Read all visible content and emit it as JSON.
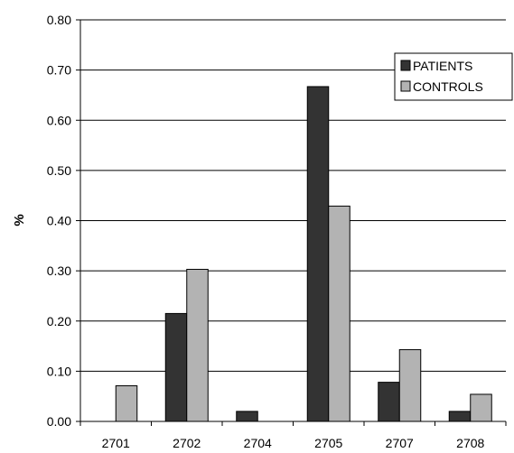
{
  "chart_data": {
    "type": "bar",
    "ylabel": "%",
    "xlabel": "",
    "title": "",
    "ylim": [
      0,
      0.8
    ],
    "yticks": [
      "0.00",
      "0.10",
      "0.20",
      "0.30",
      "0.40",
      "0.50",
      "0.60",
      "0.70",
      "0.80"
    ],
    "grid": "horizontal",
    "legend_position": "top-right",
    "categories": [
      "2701",
      "2702",
      "2704",
      "2705",
      "2707",
      "2708"
    ],
    "series": [
      {
        "name": "PATIENTS",
        "color": "#333333",
        "values": [
          0,
          0.215,
          0.02,
          0.667,
          0.078,
          0.02
        ]
      },
      {
        "name": "CONTROLS",
        "color": "#b3b3b3",
        "values": [
          0.071,
          0.303,
          0,
          0.429,
          0.143,
          0.054
        ]
      }
    ]
  }
}
